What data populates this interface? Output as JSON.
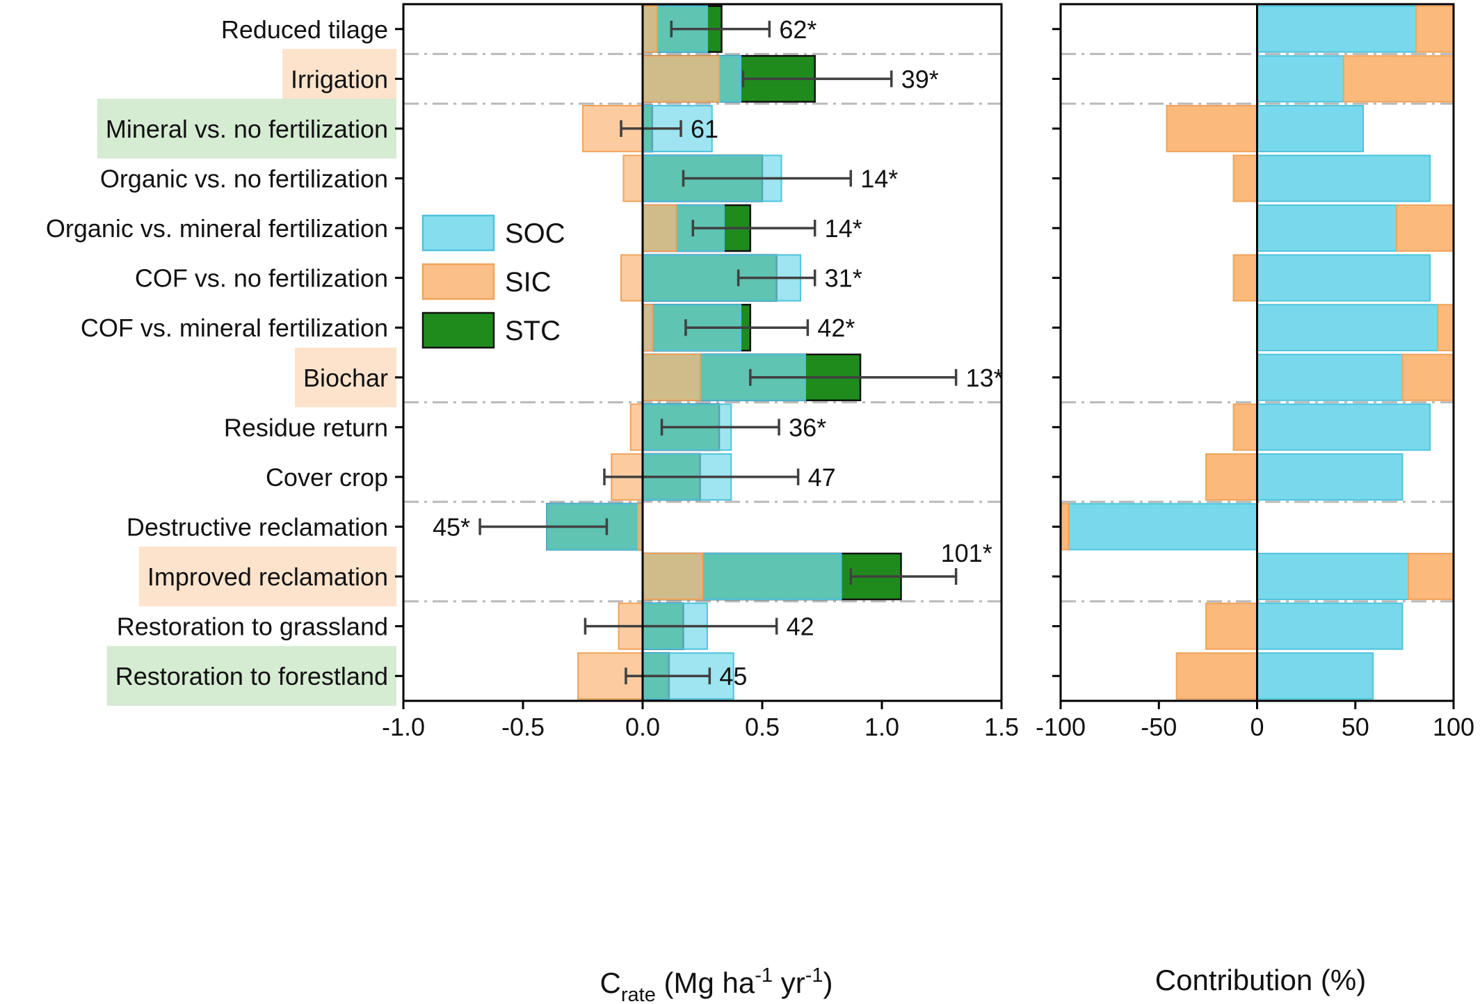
{
  "chart_data": [
    {
      "type": "bar",
      "categories": [
        "Reduced tilage",
        "Irrigation",
        "Mineral vs. no fertilization",
        "Organic vs. no fertilization",
        "Organic vs. mineral fertilization",
        "COF vs. no fertilization",
        "COF vs. mineral fertilization",
        "Biochar",
        "Residue return",
        "Cover crop",
        "Destructive reclamation",
        "Improved reclamation",
        "Restoration to grassland",
        "Restoration to forestland"
      ],
      "highlights": [
        {
          "category": "Irrigation",
          "color": "#fde3cc"
        },
        {
          "category": "Mineral vs. no fertilization",
          "color": "#d5ebd2"
        },
        {
          "category": "Biochar",
          "color": "#fde3cc"
        },
        {
          "category": "Improved reclamation",
          "color": "#fde3cc"
        },
        {
          "category": "Restoration to forestland",
          "color": "#d5ebd2"
        }
      ],
      "group_separators_after": [
        "Reduced tilage",
        "Irrigation",
        "Biochar",
        "Cover crop",
        "Improved reclamation"
      ],
      "series": [
        {
          "name": "SOC",
          "color": "#79d9ec",
          "values": [
            0.27,
            0.41,
            0.29,
            0.58,
            0.34,
            0.66,
            0.41,
            0.68,
            0.37,
            0.37,
            -0.4,
            0.83,
            0.27,
            0.38
          ]
        },
        {
          "name": "SIC",
          "color": "#fbb97c",
          "values": [
            0.06,
            0.32,
            -0.25,
            -0.08,
            0.14,
            -0.09,
            0.04,
            0.24,
            -0.05,
            -0.13,
            -0.02,
            0.25,
            -0.1,
            -0.27
          ]
        },
        {
          "name": "STC",
          "color": "#1f8b1d",
          "values": [
            0.33,
            0.72,
            0.04,
            0.5,
            0.45,
            0.56,
            0.45,
            0.91,
            0.32,
            0.24,
            -0.4,
            1.08,
            0.17,
            0.11
          ]
        }
      ],
      "error_bars": {
        "low": [
          0.12,
          0.42,
          -0.09,
          0.17,
          0.21,
          0.4,
          0.18,
          0.45,
          0.08,
          -0.16,
          -0.68,
          0.87,
          -0.24,
          -0.07
        ],
        "high": [
          0.53,
          1.04,
          0.16,
          0.87,
          0.72,
          0.72,
          0.69,
          1.31,
          0.57,
          0.65,
          -0.15,
          1.31,
          0.56,
          0.28
        ]
      },
      "labels": [
        "62*",
        "39*",
        "61",
        "14*",
        "14*",
        "31*",
        "42*",
        "13*",
        "36*",
        "47",
        "45*",
        "101*",
        "42",
        "45"
      ],
      "xlabel": "C",
      "xlabel_sub": "rate",
      "xlabel_units": " (Mg ha",
      "xlabel_exp1": "-1",
      "xlabel_mid": " yr",
      "xlabel_exp2": "-1",
      "xlabel_end": ")",
      "xlim": [
        -1.0,
        1.5
      ],
      "xticks": [
        -1.0,
        -0.5,
        0.0,
        0.5,
        1.0,
        1.5
      ],
      "xtick_labels": [
        "-1.0",
        "-0.5",
        "0.0",
        "0.5",
        "1.0",
        "1.5"
      ],
      "legend": {
        "position": "upper-left",
        "entries": [
          "SOC",
          "SIC",
          "STC"
        ]
      }
    },
    {
      "type": "bar",
      "categories": [
        "Reduced tilage",
        "Irrigation",
        "Mineral vs. no fertilization",
        "Organic vs. no fertilization",
        "Organic vs. mineral fertilization",
        "COF vs. no fertilization",
        "COF vs. mineral fertilization",
        "Biochar",
        "Residue return",
        "Cover crop",
        "Destructive reclamation",
        "Improved reclamation",
        "Restoration to grassland",
        "Restoration to forestland"
      ],
      "series": [
        {
          "name": "SOC",
          "color": "#79d9ec",
          "values": [
            81,
            44,
            54,
            88,
            71,
            88,
            92,
            74,
            88,
            74,
            -96,
            77,
            74,
            59
          ]
        },
        {
          "name": "SIC",
          "color": "#fbb97c",
          "values": [
            19,
            56,
            -46,
            -12,
            29,
            -12,
            8,
            26,
            -12,
            -26,
            -4,
            23,
            -26,
            -41
          ]
        }
      ],
      "xlabel": "Contribution (%)",
      "xlim": [
        -100,
        100
      ],
      "xticks": [
        -100,
        -50,
        0,
        50,
        100
      ],
      "xtick_labels": [
        "-100",
        "-50",
        "0",
        "50",
        "100"
      ]
    }
  ]
}
